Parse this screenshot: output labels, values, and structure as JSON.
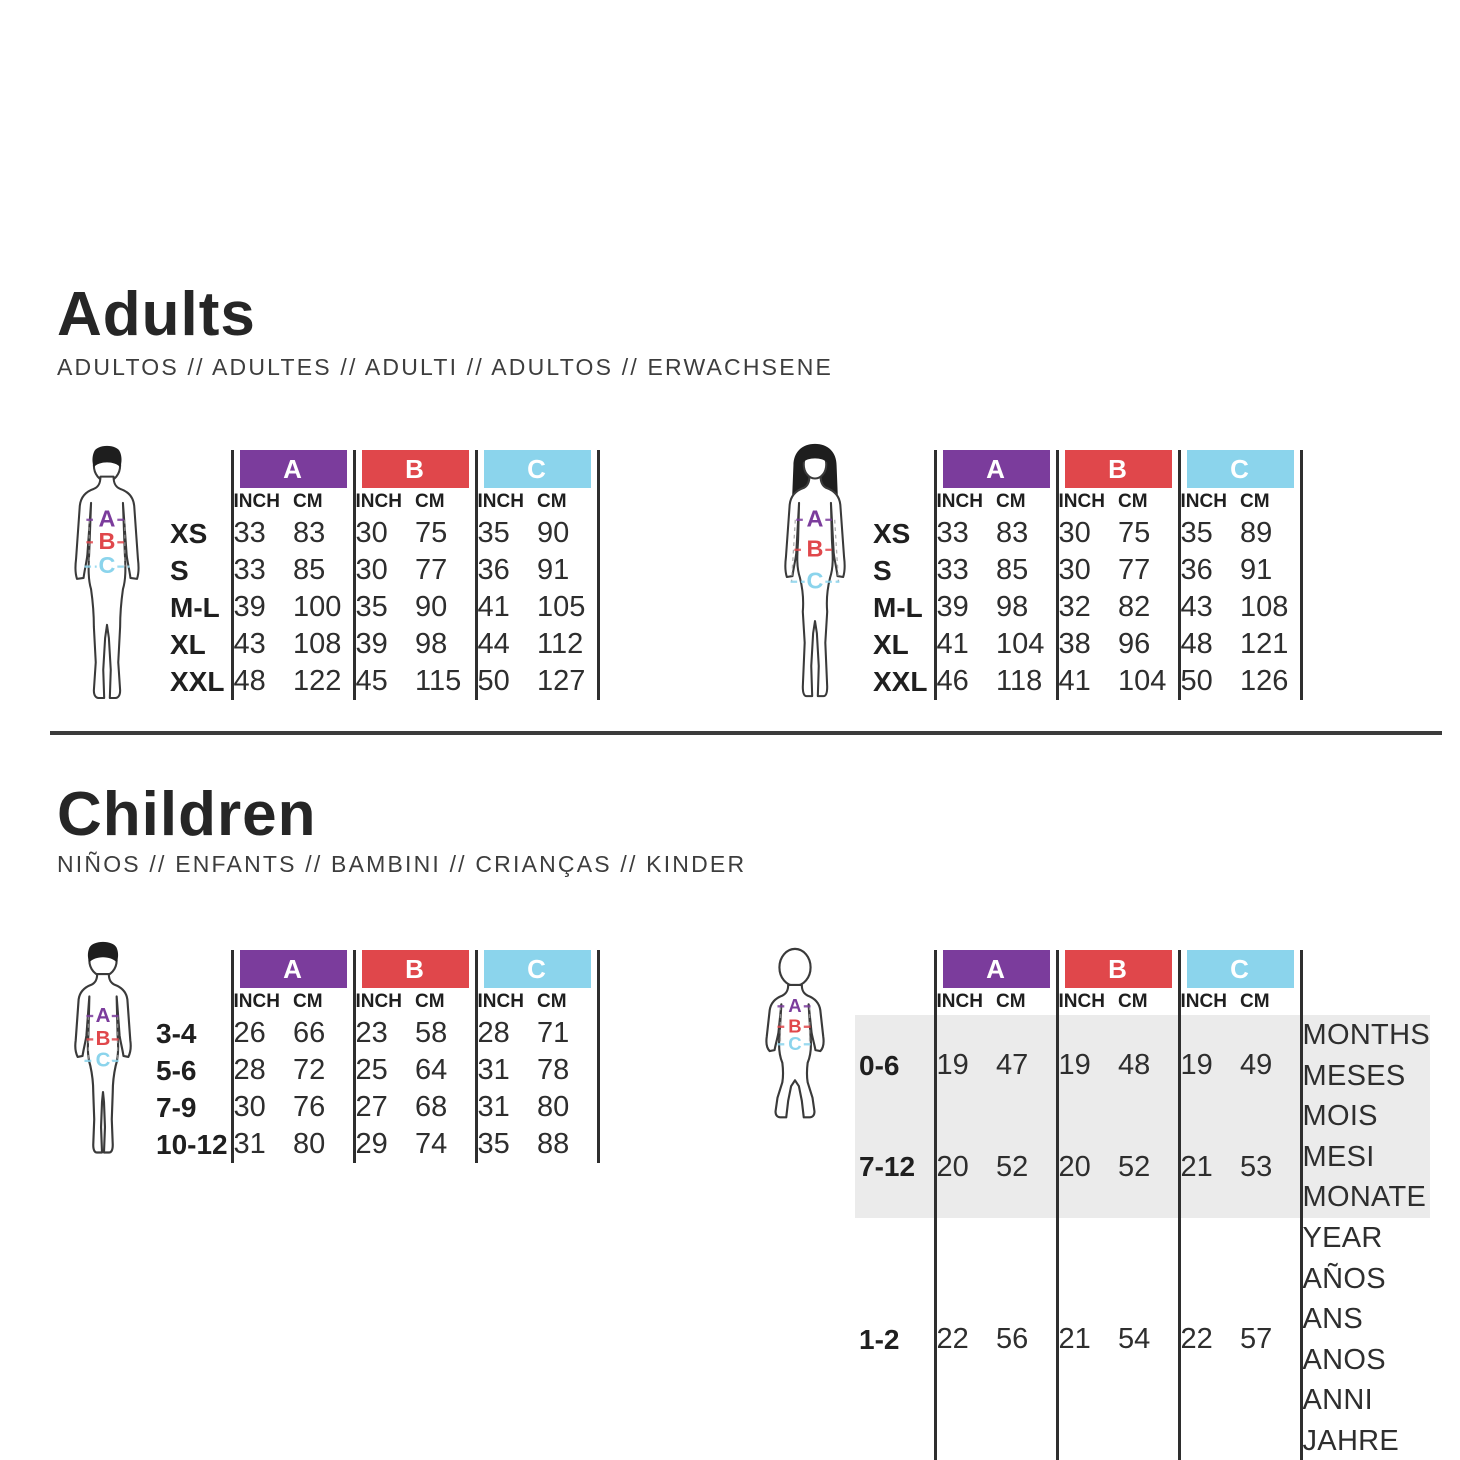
{
  "measure_letters": [
    "A",
    "B",
    "C"
  ],
  "colors": {
    "groups": [
      "#7B3C9C",
      "#E0474B",
      "#8BD4EC"
    ],
    "band": "#EBEBEB",
    "line": "#2E2E2E"
  },
  "unit_headers": [
    "INCH",
    "CM"
  ],
  "sections": [
    {
      "title": "Adults",
      "subtitle": "ADULTOS // ADULTES // ADULTI // ADULTOS // ERWACHSENE"
    },
    {
      "title": "Children",
      "subtitle": "NIÑOS // ENFANTS // BAMBINI // CRIANÇAS // KINDER"
    }
  ],
  "tables": {
    "adult_male": {
      "figure": "man",
      "rows": [
        {
          "label": "XS",
          "values": [
            "33",
            "83",
            "30",
            "75",
            "35",
            "90"
          ]
        },
        {
          "label": "S",
          "values": [
            "33",
            "85",
            "30",
            "77",
            "36",
            "91"
          ]
        },
        {
          "label": "M-L",
          "values": [
            "39",
            "100",
            "35",
            "90",
            "41",
            "105"
          ]
        },
        {
          "label": "XL",
          "values": [
            "43",
            "108",
            "39",
            "98",
            "44",
            "112"
          ]
        },
        {
          "label": "XXL",
          "values": [
            "48",
            "122",
            "45",
            "115",
            "50",
            "127"
          ]
        }
      ]
    },
    "adult_female": {
      "figure": "woman",
      "rows": [
        {
          "label": "XS",
          "values": [
            "33",
            "83",
            "30",
            "75",
            "35",
            "89"
          ]
        },
        {
          "label": "S",
          "values": [
            "33",
            "85",
            "30",
            "77",
            "36",
            "91"
          ]
        },
        {
          "label": "M-L",
          "values": [
            "39",
            "98",
            "32",
            "82",
            "43",
            "108"
          ]
        },
        {
          "label": "XL",
          "values": [
            "41",
            "104",
            "38",
            "96",
            "48",
            "121"
          ]
        },
        {
          "label": "XXL",
          "values": [
            "46",
            "118",
            "41",
            "104",
            "50",
            "126"
          ]
        }
      ]
    },
    "child": {
      "figure": "child",
      "rows": [
        {
          "label": "3-4",
          "values": [
            "26",
            "66",
            "23",
            "58",
            "28",
            "71"
          ]
        },
        {
          "label": "5-6",
          "values": [
            "28",
            "72",
            "25",
            "64",
            "31",
            "78"
          ]
        },
        {
          "label": "7-9",
          "values": [
            "30",
            "76",
            "27",
            "68",
            "31",
            "80"
          ]
        },
        {
          "label": "10-12",
          "values": [
            "31",
            "80",
            "29",
            "74",
            "35",
            "88"
          ]
        }
      ]
    },
    "baby": {
      "figure": "baby",
      "rows": [
        {
          "label": "0-6",
          "values": [
            "19",
            "47",
            "19",
            "48",
            "19",
            "49"
          ],
          "band": true
        },
        {
          "label": "7-12",
          "values": [
            "20",
            "52",
            "20",
            "52",
            "21",
            "53"
          ],
          "band": true
        },
        {
          "label": "1-2",
          "values": [
            "22",
            "56",
            "21",
            "54",
            "22",
            "57"
          ]
        }
      ],
      "notes": {
        "months": [
          "MONTHS",
          "MESES",
          "MOIS MESI",
          "MONATE"
        ],
        "years": [
          "YEAR AÑOS",
          "ANS ANOS",
          "ANNI JAHRE"
        ]
      }
    }
  }
}
